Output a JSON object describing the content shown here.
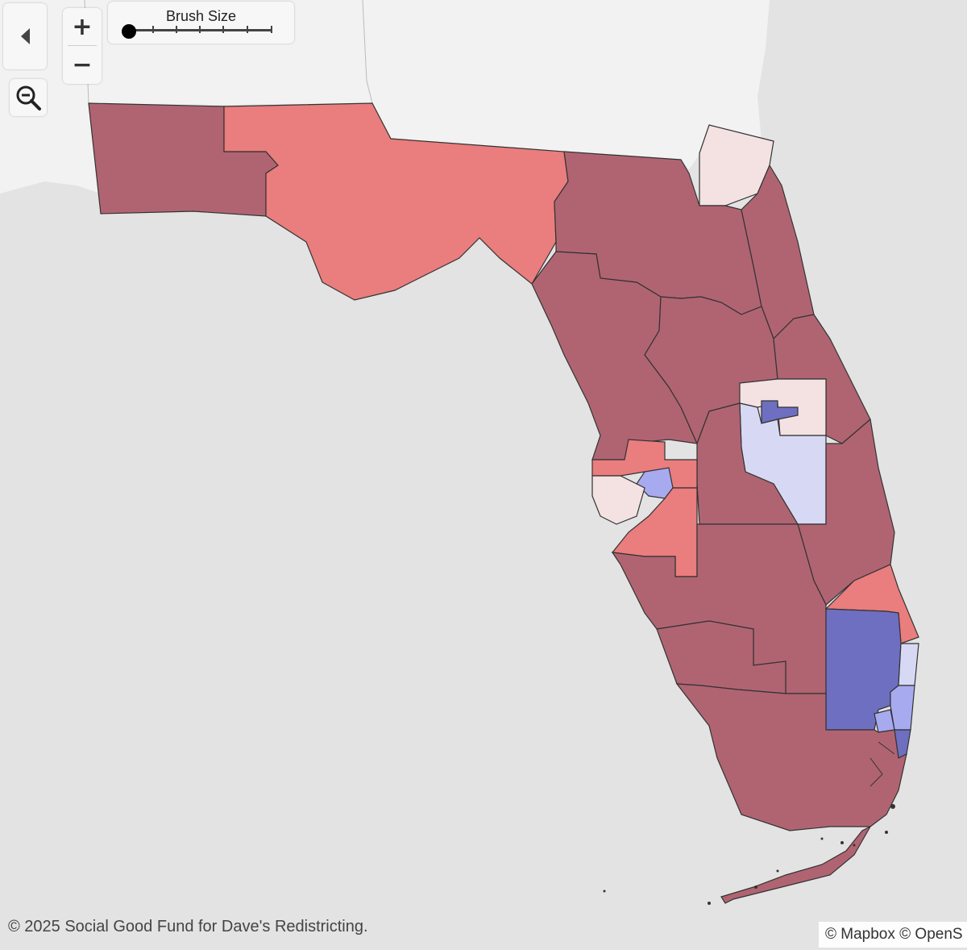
{
  "map": {
    "region": "Florida",
    "colors": {
      "water": "#e3e3e3",
      "land": "#f2f2f2",
      "safe_r": "#b06472",
      "lean_r": "#ea7d7d",
      "tilt_r": "#f4e2e2",
      "tilt_d": "#d7d9f4",
      "lean_d": "#a8aaf0",
      "safe_d": "#6e6fc0"
    }
  },
  "controls": {
    "back_icon": "chevron-left-icon",
    "zoom_in_label": "+",
    "zoom_out_label": "−",
    "zoom_extent_icon": "magnifier-minus-icon",
    "brush_label": "Brush Size",
    "brush_level": 0
  },
  "footer": {
    "copyright": "© 2025 Social Good Fund for Dave's Redistricting.",
    "attribution": "© Mapbox © OpenS"
  }
}
